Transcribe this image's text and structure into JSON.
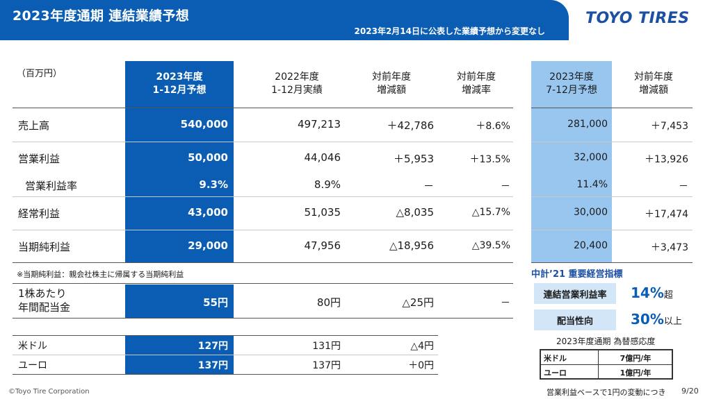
{
  "header": {
    "title": "2023年度通期 連結業績予想",
    "subtitle": "2023年2月14日に公表した業績予想から変更なし",
    "logo": "TOYO TIRES"
  },
  "unit": "（百万円）",
  "columns": {
    "c1": [
      "2023年度",
      "1-12月予想"
    ],
    "c2": [
      "2022年度",
      "1-12月実績"
    ],
    "c3": [
      "対前年度",
      "増減額"
    ],
    "c4": [
      "対前年度",
      "増減率"
    ],
    "c5": [
      "2023年度",
      "7-12月予想"
    ],
    "c6": [
      "対前年度",
      "増減額"
    ]
  },
  "rows": [
    {
      "label": "売上高",
      "c1": "540,000",
      "c2": "497,213",
      "c3": "＋42,786",
      "c4": "＋8.6%",
      "c5": "281,000",
      "c6": "＋7,453"
    },
    {
      "label": "営業利益",
      "c1": "50,000",
      "c2": "44,046",
      "c3": "＋5,953",
      "c4": "＋13.5%",
      "c5": "32,000",
      "c6": "＋13,926"
    },
    {
      "label": "営業利益率",
      "c1": "9.3%",
      "c2": "8.9%",
      "c3": "－",
      "c4": "－",
      "c5": "11.4%",
      "c6": "－"
    },
    {
      "label": "経常利益",
      "c1": "43,000",
      "c2": "51,035",
      "c3": "△8,035",
      "c4": "△15.7%",
      "c5": "30,000",
      "c6": "＋17,474"
    },
    {
      "label": "当期純利益",
      "c1": "29,000",
      "c2": "47,956",
      "c3": "△18,956",
      "c4": "△39.5%",
      "c5": "20,400",
      "c6": "＋3,473"
    }
  ],
  "note": "※当期純利益：親会社株主に帰属する当期純利益",
  "dividend": {
    "label1": "1株あたり",
    "label2": "年間配当金",
    "c1": "55円",
    "c2": "80円",
    "c3": "△25円",
    "c4": "－"
  },
  "fx_rows": [
    {
      "label": "米ドル",
      "c1": "127円",
      "c2": "131円",
      "c3": "△4円"
    },
    {
      "label": "ユーロ",
      "c1": "137円",
      "c2": "137円",
      "c3": "＋0円"
    }
  ],
  "kpi": {
    "title": "中計’21 重要経営指標",
    "items": [
      {
        "label": "連結営業利益率",
        "value": "14%",
        "suffix": "超"
      },
      {
        "label": "配当性向",
        "value": "30%",
        "suffix": "以上"
      }
    ]
  },
  "fx_sensitivity": {
    "title": "2023年度通期 為替感応度",
    "rows": [
      {
        "k": "米ドル",
        "v": "7億円/年"
      },
      {
        "k": "ユーロ",
        "v": "1億円/年"
      }
    ],
    "note": "営業利益ベースで1円の変動につき"
  },
  "footer": {
    "copyright": "©Toyo Tire Corporation",
    "page": "9/20"
  },
  "colors": {
    "brand_blue": "#0b5db3",
    "light_blue": "#99c6ee",
    "kpi_box": "#d3e6f7"
  }
}
